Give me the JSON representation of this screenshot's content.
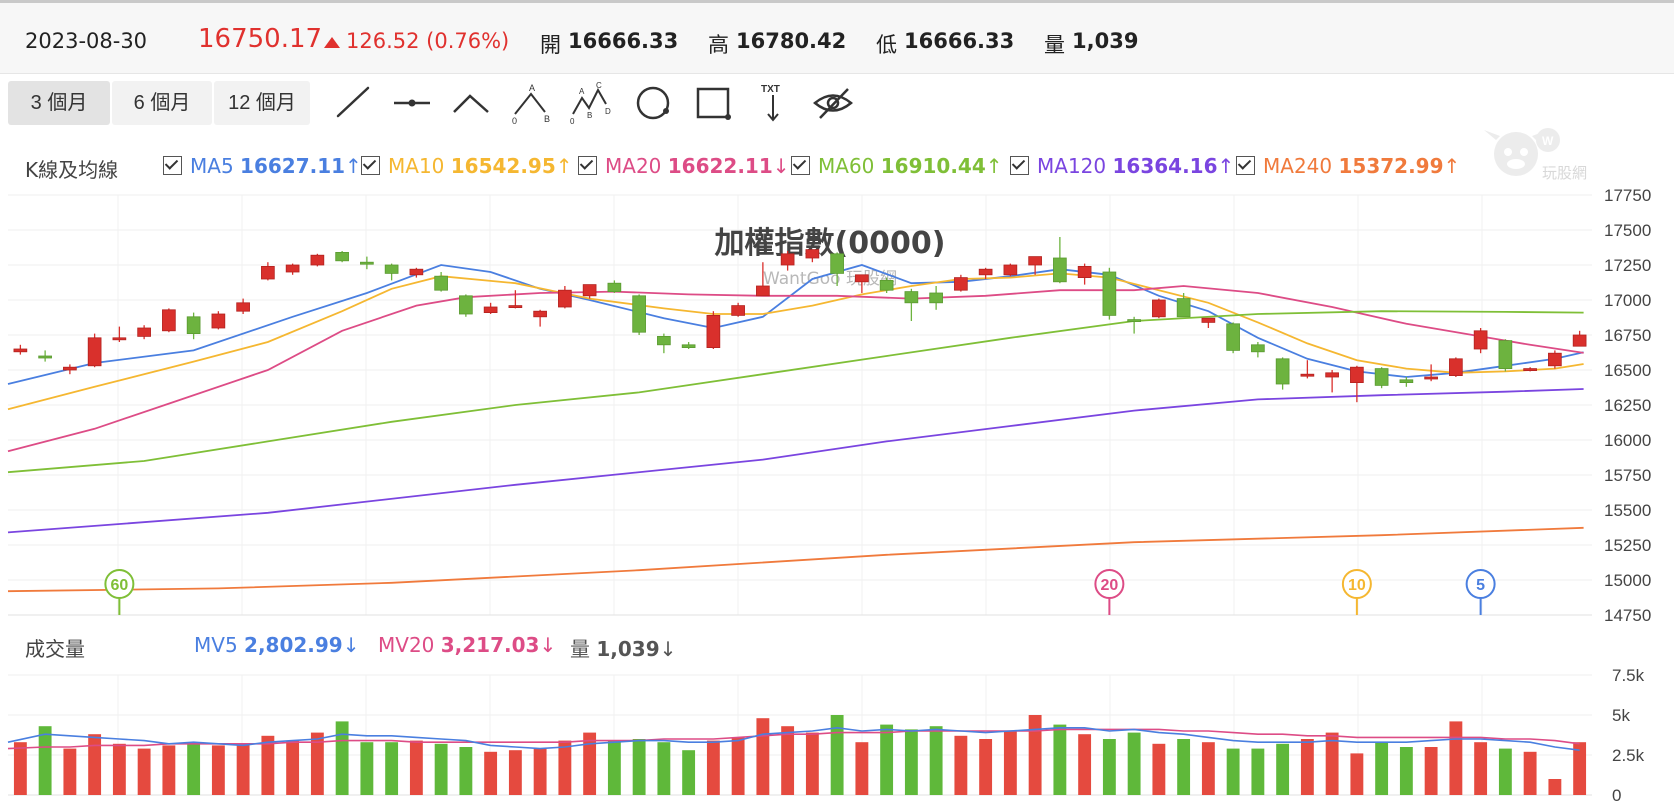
{
  "header": {
    "date": "2023-08-30",
    "price": "16750.17",
    "change": "126.52 (0.76%)",
    "open_label": "開",
    "open": "16666.33",
    "high_label": "高",
    "high": "16780.42",
    "low_label": "低",
    "low": "16666.33",
    "vol_label": "量",
    "vol": "1,039"
  },
  "toolbar": {
    "ranges": [
      "3 個月",
      "6 個月",
      "12 個月"
    ],
    "active_range": 0,
    "tools": [
      "trend-line-icon",
      "horizontal-line-icon",
      "angle-line-icon",
      "abc-pattern-icon",
      "abcd-pattern-icon",
      "circle-icon",
      "rectangle-icon",
      "text-arrow-icon",
      "hide-eye-icon"
    ],
    "tool_text": {
      "abc_a": "A",
      "abc_b": "B",
      "abc_0": "0",
      "abcd_a": "A",
      "abcd_b": "B",
      "abcd_c": "C",
      "abcd_d": "D",
      "abcd_0": "0",
      "txt": "TXT"
    }
  },
  "price_legend": {
    "title": "K線及均線",
    "items": [
      {
        "name": "MA5",
        "value": "16627.11",
        "arrow": "↑",
        "color": "#4a7fe0"
      },
      {
        "name": "MA10",
        "value": "16542.95",
        "arrow": "↑",
        "color": "#f5b731"
      },
      {
        "name": "MA20",
        "value": "16622.11",
        "arrow": "↓",
        "color": "#dd4c86"
      },
      {
        "name": "MA60",
        "value": "16910.44",
        "arrow": "↑",
        "color": "#7fbf37"
      },
      {
        "name": "MA120",
        "value": "16364.16",
        "arrow": "↑",
        "color": "#7a45e0"
      },
      {
        "name": "MA240",
        "value": "15372.99",
        "arrow": "↑",
        "color": "#f07a3c"
      }
    ]
  },
  "volume_legend": {
    "title": "成交量",
    "items": [
      {
        "name": "MV5",
        "value": "2,802.99",
        "arrow": "↓",
        "color": "#4a7fe0"
      },
      {
        "name": "MV20",
        "value": "3,217.03",
        "arrow": "↓",
        "color": "#dd4c86"
      },
      {
        "name": "量",
        "value": "1,039",
        "arrow": "↓",
        "color": "#555555"
      }
    ]
  },
  "watermark": {
    "text": "玩股網"
  },
  "chart_data": {
    "type": "candlestick",
    "title": "加權指數(0000)",
    "subtitle": "WantGoo 玩股網",
    "y_ticks": [
      "17750",
      "17500",
      "17250",
      "17000",
      "16750",
      "16500",
      "16250",
      "16000",
      "15750",
      "15500",
      "15250",
      "15000",
      "14750"
    ],
    "y_range": [
      14750,
      17750
    ],
    "vol_ticks": [
      "7.5k",
      "5k",
      "2.5k",
      "0"
    ],
    "vol_range": [
      0,
      7500
    ],
    "colors": {
      "up": "#d9302c",
      "down": "#6db33f",
      "vol_up": "#e54a3f",
      "vol_down": "#5fb83a"
    },
    "candles": [
      {
        "o": 16630,
        "h": 16680,
        "l": 16610,
        "c": 16650
      },
      {
        "o": 16600,
        "h": 16640,
        "l": 16560,
        "c": 16590
      },
      {
        "o": 16500,
        "h": 16540,
        "l": 16470,
        "c": 16520
      },
      {
        "o": 16530,
        "h": 16760,
        "l": 16520,
        "c": 16730
      },
      {
        "o": 16720,
        "h": 16810,
        "l": 16700,
        "c": 16730
      },
      {
        "o": 16740,
        "h": 16820,
        "l": 16720,
        "c": 16800
      },
      {
        "o": 16780,
        "h": 16940,
        "l": 16770,
        "c": 16930
      },
      {
        "o": 16880,
        "h": 16910,
        "l": 16720,
        "c": 16760
      },
      {
        "o": 16800,
        "h": 16920,
        "l": 16790,
        "c": 16900
      },
      {
        "o": 16920,
        "h": 17010,
        "l": 16900,
        "c": 16980
      },
      {
        "o": 17150,
        "h": 17270,
        "l": 17140,
        "c": 17240
      },
      {
        "o": 17200,
        "h": 17260,
        "l": 17180,
        "c": 17250
      },
      {
        "o": 17250,
        "h": 17330,
        "l": 17240,
        "c": 17320
      },
      {
        "o": 17340,
        "h": 17350,
        "l": 17270,
        "c": 17280
      },
      {
        "o": 17270,
        "h": 17310,
        "l": 17220,
        "c": 17260
      },
      {
        "o": 17250,
        "h": 17260,
        "l": 17140,
        "c": 17190
      },
      {
        "o": 17180,
        "h": 17230,
        "l": 17160,
        "c": 17220
      },
      {
        "o": 17170,
        "h": 17200,
        "l": 17060,
        "c": 17070
      },
      {
        "o": 17030,
        "h": 17040,
        "l": 16880,
        "c": 16900
      },
      {
        "o": 16910,
        "h": 16980,
        "l": 16900,
        "c": 16950
      },
      {
        "o": 16950,
        "h": 17070,
        "l": 16940,
        "c": 16960
      },
      {
        "o": 16880,
        "h": 16930,
        "l": 16810,
        "c": 16920
      },
      {
        "o": 16950,
        "h": 17100,
        "l": 16940,
        "c": 17070
      },
      {
        "o": 17030,
        "h": 17110,
        "l": 17010,
        "c": 17110
      },
      {
        "o": 17120,
        "h": 17140,
        "l": 17050,
        "c": 17060
      },
      {
        "o": 17030,
        "h": 17040,
        "l": 16750,
        "c": 16770
      },
      {
        "o": 16740,
        "h": 16760,
        "l": 16620,
        "c": 16680
      },
      {
        "o": 16680,
        "h": 16700,
        "l": 16650,
        "c": 16660
      },
      {
        "o": 16660,
        "h": 16920,
        "l": 16650,
        "c": 16890
      },
      {
        "o": 16890,
        "h": 16980,
        "l": 16880,
        "c": 16960
      },
      {
        "o": 17030,
        "h": 17270,
        "l": 17030,
        "c": 17100
      },
      {
        "o": 17250,
        "h": 17350,
        "l": 17210,
        "c": 17330
      },
      {
        "o": 17300,
        "h": 17360,
        "l": 17270,
        "c": 17360
      },
      {
        "o": 17330,
        "h": 17340,
        "l": 17100,
        "c": 17190
      },
      {
        "o": 17130,
        "h": 17180,
        "l": 17050,
        "c": 17180
      },
      {
        "o": 17140,
        "h": 17160,
        "l": 17050,
        "c": 17070
      },
      {
        "o": 17060,
        "h": 17080,
        "l": 16850,
        "c": 16980
      },
      {
        "o": 17050,
        "h": 17100,
        "l": 16930,
        "c": 16980
      },
      {
        "o": 17070,
        "h": 17180,
        "l": 17060,
        "c": 17160
      },
      {
        "o": 17180,
        "h": 17230,
        "l": 17150,
        "c": 17220
      },
      {
        "o": 17180,
        "h": 17260,
        "l": 17170,
        "c": 17250
      },
      {
        "o": 17250,
        "h": 17300,
        "l": 17180,
        "c": 17310
      },
      {
        "o": 17300,
        "h": 17450,
        "l": 17120,
        "c": 17130
      },
      {
        "o": 17160,
        "h": 17260,
        "l": 17110,
        "c": 17240
      },
      {
        "o": 17200,
        "h": 17230,
        "l": 16860,
        "c": 16890
      },
      {
        "o": 16860,
        "h": 16880,
        "l": 16760,
        "c": 16850
      },
      {
        "o": 16880,
        "h": 17010,
        "l": 16870,
        "c": 17000
      },
      {
        "o": 17010,
        "h": 17050,
        "l": 16880,
        "c": 16880
      },
      {
        "o": 16840,
        "h": 16870,
        "l": 16800,
        "c": 16870
      },
      {
        "o": 16830,
        "h": 16840,
        "l": 16620,
        "c": 16640
      },
      {
        "o": 16680,
        "h": 16700,
        "l": 16590,
        "c": 16630
      },
      {
        "o": 16580,
        "h": 16590,
        "l": 16360,
        "c": 16400
      },
      {
        "o": 16470,
        "h": 16570,
        "l": 16440,
        "c": 16470
      },
      {
        "o": 16450,
        "h": 16500,
        "l": 16340,
        "c": 16480
      },
      {
        "o": 16410,
        "h": 16530,
        "l": 16270,
        "c": 16520
      },
      {
        "o": 16510,
        "h": 16520,
        "l": 16370,
        "c": 16390
      },
      {
        "o": 16430,
        "h": 16450,
        "l": 16380,
        "c": 16410
      },
      {
        "o": 16440,
        "h": 16540,
        "l": 16420,
        "c": 16450
      },
      {
        "o": 16460,
        "h": 16590,
        "l": 16450,
        "c": 16580
      },
      {
        "o": 16650,
        "h": 16800,
        "l": 16620,
        "c": 16780
      },
      {
        "o": 16710,
        "h": 16720,
        "l": 16490,
        "c": 16510
      },
      {
        "o": 16500,
        "h": 16520,
        "l": 16490,
        "c": 16510
      },
      {
        "o": 16530,
        "h": 16640,
        "l": 16510,
        "c": 16620
      },
      {
        "o": 16670,
        "h": 16780,
        "l": 16670,
        "c": 16750
      }
    ],
    "volume": [
      3.3,
      4.3,
      2.9,
      3.8,
      3.2,
      2.9,
      3.1,
      3.3,
      3.1,
      3.2,
      3.7,
      3.4,
      3.9,
      4.6,
      3.3,
      3.3,
      3.4,
      3.2,
      3.0,
      2.7,
      2.8,
      2.9,
      3.4,
      3.9,
      3.4,
      3.5,
      3.3,
      2.8,
      3.4,
      3.6,
      4.8,
      4.3,
      3.9,
      5.0,
      3.3,
      4.4,
      4.1,
      4.3,
      3.7,
      3.5,
      4.0,
      5.0,
      4.4,
      3.8,
      3.5,
      3.9,
      3.2,
      3.5,
      3.3,
      2.9,
      2.9,
      3.2,
      3.5,
      3.9,
      2.6,
      3.3,
      3.0,
      3.0,
      4.6,
      3.3,
      2.9,
      2.7,
      1.0,
      3.3
    ],
    "mv5": [
      3.3,
      3.8,
      3.7,
      3.6,
      3.5,
      3.4,
      3.2,
      3.3,
      3.2,
      3.1,
      3.3,
      3.4,
      3.5,
      3.8,
      3.7,
      3.7,
      3.6,
      3.5,
      3.4,
      3.1,
      3.0,
      2.9,
      3.0,
      3.2,
      3.3,
      3.4,
      3.4,
      3.3,
      3.3,
      3.4,
      3.8,
      3.9,
      4.0,
      4.2,
      4.0,
      4.1,
      4.0,
      4.1,
      4.0,
      3.9,
      4.0,
      4.1,
      4.2,
      4.2,
      4.0,
      4.1,
      3.9,
      3.8,
      3.6,
      3.4,
      3.3,
      3.3,
      3.3,
      3.4,
      3.3,
      3.3,
      3.3,
      3.4,
      3.5,
      3.5,
      3.4,
      3.3,
      3.0,
      2.8
    ],
    "mv20": [
      2.9,
      3.0,
      3.0,
      3.1,
      3.1,
      3.1,
      3.2,
      3.2,
      3.2,
      3.2,
      3.2,
      3.3,
      3.3,
      3.4,
      3.4,
      3.4,
      3.3,
      3.3,
      3.3,
      3.3,
      3.3,
      3.3,
      3.3,
      3.4,
      3.4,
      3.4,
      3.5,
      3.5,
      3.5,
      3.6,
      3.7,
      3.8,
      3.8,
      3.9,
      3.9,
      3.9,
      4.0,
      4.0,
      4.0,
      4.0,
      4.0,
      4.0,
      4.1,
      4.1,
      4.1,
      4.1,
      4.1,
      4.0,
      4.0,
      3.9,
      3.8,
      3.8,
      3.7,
      3.7,
      3.6,
      3.6,
      3.6,
      3.6,
      3.6,
      3.6,
      3.5,
      3.5,
      3.4,
      3.2
    ],
    "ma_lines": {
      "MA5": [
        [
          0,
          16400
        ],
        [
          3,
          16550
        ],
        [
          7,
          16640
        ],
        [
          11,
          16880
        ],
        [
          14,
          17050
        ],
        [
          17,
          17250
        ],
        [
          19,
          17200
        ],
        [
          21,
          17080
        ],
        [
          23,
          17000
        ],
        [
          26,
          16870
        ],
        [
          28,
          16800
        ],
        [
          30,
          16880
        ],
        [
          32,
          17150
        ],
        [
          34,
          17250
        ],
        [
          36,
          17120
        ],
        [
          38,
          17130
        ],
        [
          40,
          17170
        ],
        [
          42,
          17220
        ],
        [
          44,
          17180
        ],
        [
          46,
          17030
        ],
        [
          48,
          16920
        ],
        [
          50,
          16730
        ],
        [
          52,
          16580
        ],
        [
          54,
          16490
        ],
        [
          56,
          16450
        ],
        [
          58,
          16480
        ],
        [
          60,
          16530
        ],
        [
          62,
          16580
        ],
        [
          63,
          16627
        ]
      ],
      "MA10": [
        [
          0,
          16220
        ],
        [
          3,
          16380
        ],
        [
          7,
          16560
        ],
        [
          10,
          16700
        ],
        [
          13,
          16920
        ],
        [
          15,
          17080
        ],
        [
          17,
          17170
        ],
        [
          20,
          17120
        ],
        [
          23,
          17010
        ],
        [
          26,
          16940
        ],
        [
          28,
          16900
        ],
        [
          30,
          16900
        ],
        [
          32,
          16960
        ],
        [
          34,
          17040
        ],
        [
          36,
          17100
        ],
        [
          38,
          17150
        ],
        [
          40,
          17160
        ],
        [
          42,
          17190
        ],
        [
          44,
          17160
        ],
        [
          46,
          17070
        ],
        [
          48,
          16980
        ],
        [
          50,
          16840
        ],
        [
          52,
          16690
        ],
        [
          54,
          16570
        ],
        [
          56,
          16510
        ],
        [
          58,
          16480
        ],
        [
          60,
          16490
        ],
        [
          62,
          16510
        ],
        [
          63,
          16543
        ]
      ],
      "MA20": [
        [
          0,
          15920
        ],
        [
          3,
          16080
        ],
        [
          6,
          16260
        ],
        [
          10,
          16500
        ],
        [
          13,
          16780
        ],
        [
          16,
          16960
        ],
        [
          18,
          17020
        ],
        [
          21,
          17050
        ],
        [
          24,
          17060
        ],
        [
          27,
          17040
        ],
        [
          30,
          17030
        ],
        [
          33,
          17030
        ],
        [
          36,
          17010
        ],
        [
          39,
          17030
        ],
        [
          42,
          17070
        ],
        [
          45,
          17070
        ],
        [
          47,
          17100
        ],
        [
          50,
          17050
        ],
        [
          53,
          16950
        ],
        [
          56,
          16830
        ],
        [
          59,
          16740
        ],
        [
          61,
          16680
        ],
        [
          63,
          16622
        ]
      ],
      "MA60": [
        [
          0,
          15770
        ],
        [
          5,
          15850
        ],
        [
          10,
          15990
        ],
        [
          15,
          16130
        ],
        [
          20,
          16250
        ],
        [
          25,
          16340
        ],
        [
          30,
          16470
        ],
        [
          35,
          16600
        ],
        [
          40,
          16730
        ],
        [
          45,
          16850
        ],
        [
          50,
          16900
        ],
        [
          55,
          16920
        ],
        [
          60,
          16915
        ],
        [
          63,
          16910
        ]
      ],
      "MA120": [
        [
          0,
          15340
        ],
        [
          10,
          15480
        ],
        [
          20,
          15680
        ],
        [
          30,
          15860
        ],
        [
          35,
          15990
        ],
        [
          40,
          16100
        ],
        [
          45,
          16210
        ],
        [
          50,
          16290
        ],
        [
          55,
          16320
        ],
        [
          60,
          16345
        ],
        [
          63,
          16364
        ]
      ],
      "MA240": [
        [
          0,
          14920
        ],
        [
          8,
          14940
        ],
        [
          15,
          14980
        ],
        [
          25,
          15070
        ],
        [
          35,
          15180
        ],
        [
          45,
          15270
        ],
        [
          55,
          15320
        ],
        [
          63,
          15373
        ]
      ]
    },
    "cross_markers": [
      {
        "label": "60",
        "index": 4,
        "color": "#7fbf37"
      },
      {
        "label": "20",
        "index": 44,
        "color": "#dd4c86"
      },
      {
        "label": "10",
        "index": 54,
        "color": "#f5b731"
      },
      {
        "label": "5",
        "index": 59,
        "color": "#4a7fe0"
      }
    ]
  }
}
